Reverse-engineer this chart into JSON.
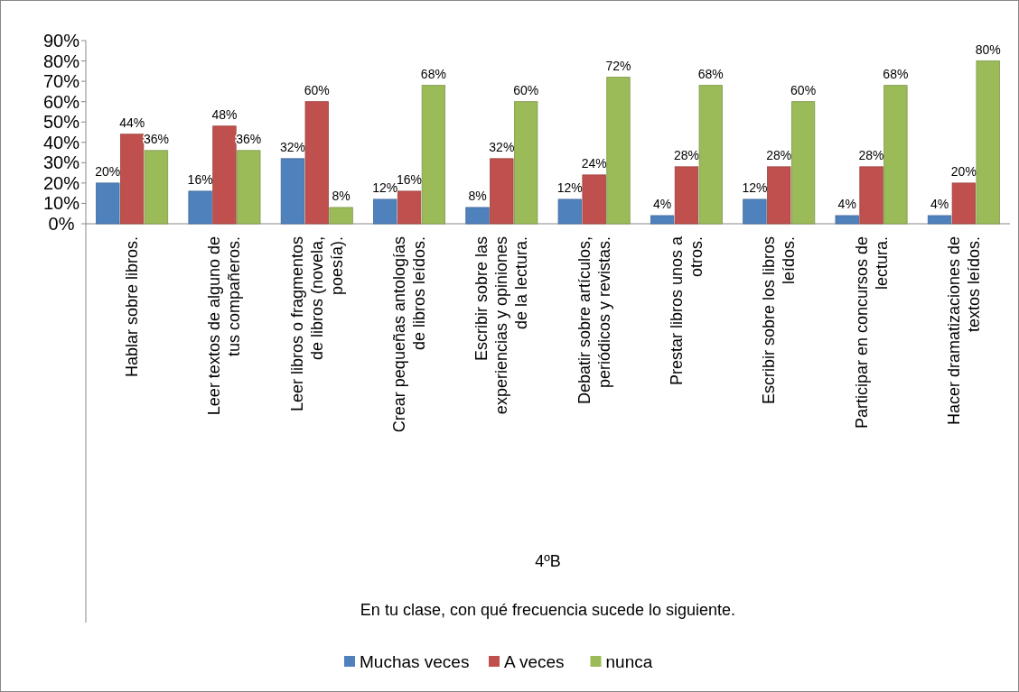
{
  "chart_data": {
    "type": "bar",
    "annotations": [
      "4ºB",
      "En tu clase, con qué frecuencia sucede lo siguiente."
    ],
    "categories": [
      "Hablar sobre libros.",
      "Leer textos de alguno de tus compañeros.",
      "Leer libros o fragmentos de libros (novela, poesía).",
      "Crear pequeñas antologías de libros leídos.",
      "Escribir sobre las experiencias y opiniones de la lectura.",
      "Debatir sobre artículos, periódicos y revistas.",
      "Prestar libros unos a otros.",
      "Escribir sobre los libros leídos.",
      "Participar en concursos de lectura.",
      "Hacer dramatizaciones de textos leídos."
    ],
    "series": [
      {
        "name": "Muchas veces",
        "color": "#4f81bd",
        "values": [
          20,
          16,
          32,
          12,
          8,
          12,
          4,
          12,
          4,
          4
        ],
        "value_labels": [
          "20%",
          "16%",
          "32%",
          "12%",
          "8%",
          "12%",
          "4%",
          "12%",
          "4%",
          "4%"
        ]
      },
      {
        "name": "A veces",
        "color": "#c0504d",
        "values": [
          44,
          48,
          60,
          16,
          32,
          24,
          28,
          28,
          28,
          20
        ],
        "value_labels": [
          "44%",
          "48%",
          "60%",
          "16%",
          "32%",
          "24%",
          "28%",
          "28%",
          "28%",
          "20%"
        ]
      },
      {
        "name": "nunca",
        "color": "#9bbb59",
        "values": [
          36,
          36,
          8,
          68,
          60,
          72,
          68,
          60,
          68,
          80
        ],
        "value_labels": [
          "36%",
          "36%",
          "8%",
          "68%",
          "60%",
          "72%",
          "68%",
          "60%",
          "68%",
          "80%"
        ]
      }
    ],
    "ylim": [
      0,
      90
    ],
    "yticks": [
      {
        "value": 0,
        "label": "0%"
      },
      {
        "value": 10,
        "label": "10%"
      },
      {
        "value": 20,
        "label": "20%"
      },
      {
        "value": 30,
        "label": "30%"
      },
      {
        "value": 40,
        "label": "40%"
      },
      {
        "value": 50,
        "label": "50%"
      },
      {
        "value": 60,
        "label": "60%"
      },
      {
        "value": 70,
        "label": "70%"
      },
      {
        "value": 80,
        "label": "80%"
      },
      {
        "value": 90,
        "label": "90%"
      }
    ],
    "legend": "bottom"
  }
}
